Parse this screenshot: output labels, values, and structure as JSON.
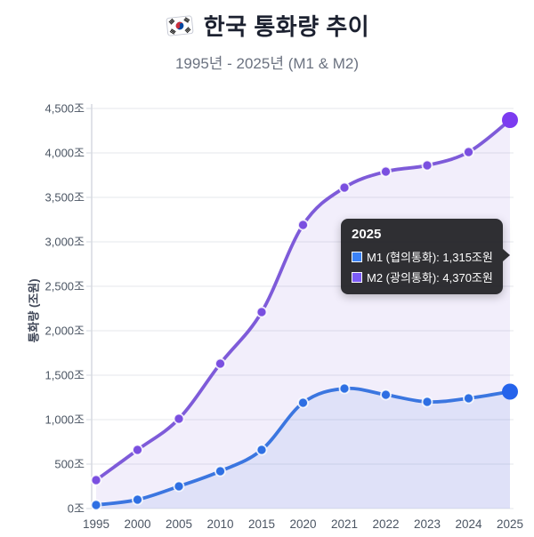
{
  "header": {
    "flag_icon": "korean-flag",
    "title": "한국 통화량 추이",
    "subtitle": "1995년 - 2025년 (M1 & M2)"
  },
  "chart_data": {
    "type": "line",
    "categories": [
      "1995",
      "2000",
      "2005",
      "2010",
      "2015",
      "2020",
      "2021",
      "2022",
      "2023",
      "2024",
      "2025"
    ],
    "series": [
      {
        "name": "M2 (광의통화)",
        "color": "#7e5bd9",
        "point_color": "#7a4fe0",
        "highlight_color": "#7c3bf0",
        "fill": "rgba(126,91,217,0.10)",
        "values": [
          320,
          660,
          1010,
          1630,
          2210,
          3190,
          3610,
          3790,
          3860,
          4010,
          4370
        ]
      },
      {
        "name": "M1 (협의통화)",
        "color": "#3b76e0",
        "point_color": "#2e6fe3",
        "highlight_color": "#2563eb",
        "fill": "rgba(59,118,224,0.10)",
        "values": [
          40,
          100,
          250,
          420,
          660,
          1190,
          1350,
          1280,
          1200,
          1240,
          1315
        ]
      }
    ],
    "ylabel": "통화량 (조원)",
    "ylim": [
      0,
      4500
    ],
    "ytick_step": 500,
    "ytick_labels": [
      "0조",
      "500조",
      "1,000조",
      "1,500조",
      "2,000조",
      "2,500조",
      "3,000조",
      "3,500조",
      "4,000조",
      "4,500조"
    ],
    "grid": true,
    "legend_position": "none",
    "highlight_index": 10
  },
  "tooltip": {
    "title": "2025",
    "rows": [
      {
        "swatch": "#3b82f6",
        "label": "M1 (협의통화): 1,315조원"
      },
      {
        "swatch": "#7c5cf6",
        "label": "M2 (광의통화): 4,370조원"
      }
    ]
  },
  "colors": {
    "grid_line": "#e5e7eb",
    "axis_line": "#d6d9e0",
    "tick_text": "#4b5563",
    "title_text": "#1c2130",
    "subtitle_text": "#6b7280",
    "tooltip_bg": "#26262b"
  }
}
